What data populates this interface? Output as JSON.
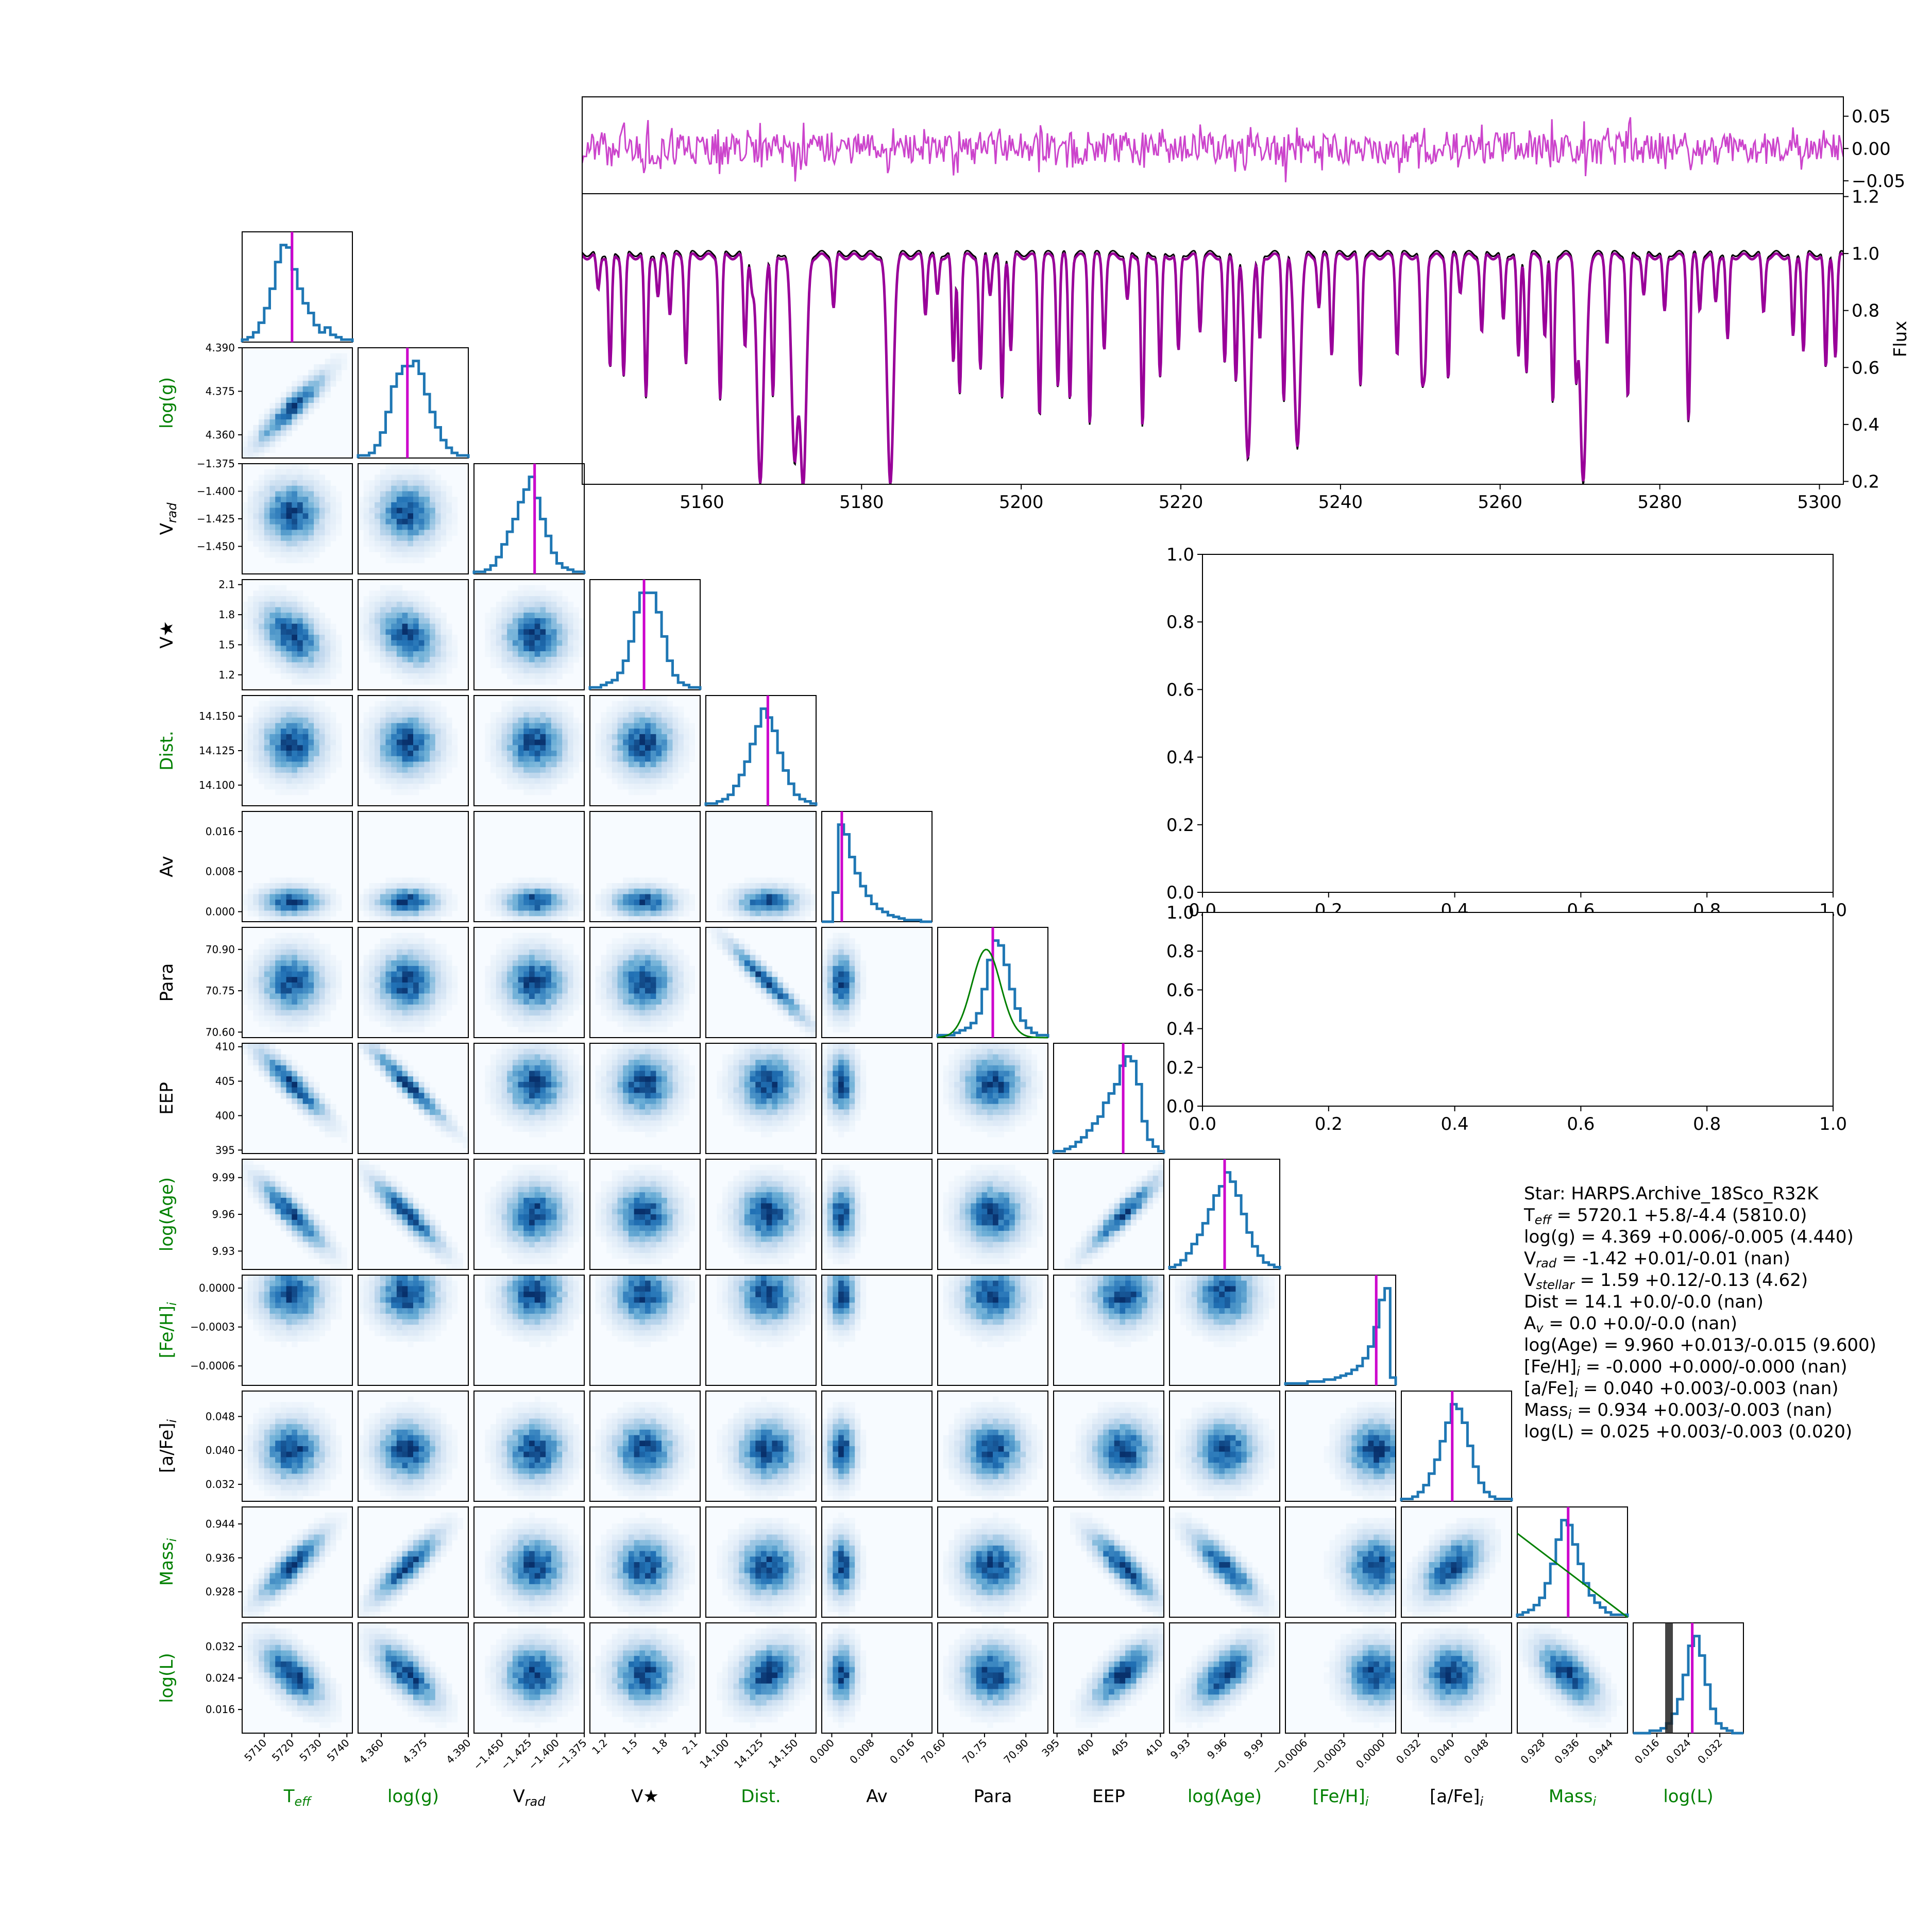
{
  "colors": {
    "hist": "#1f77b4",
    "best": "#cc00cc",
    "model": "#990099",
    "observed": "#000000",
    "residual": "#cc44cc",
    "prior": "#008000",
    "heat_low": "#f7fbff",
    "heat_high": "#08306b",
    "label_default": "#000000",
    "label_green": "#008000"
  },
  "corner": {
    "params": [
      {
        "sym": "T",
        "sub": "eff",
        "color": "green",
        "range": [
          5702,
          5742
        ],
        "ticks": [
          "5710",
          "5720",
          "5730",
          "5740"
        ],
        "tickvals": [
          5710,
          5720,
          5730,
          5740
        ],
        "best": 5720.1,
        "prior": null,
        "hist": [
          1,
          2,
          4,
          8,
          14,
          22,
          33,
          40,
          39,
          30,
          22,
          16,
          12,
          7,
          4,
          6,
          3,
          2,
          1,
          1
        ]
      },
      {
        "sym": "log(g)",
        "sub": "",
        "color": "green",
        "range": [
          4.352,
          4.39
        ],
        "ticks": [
          "4.360",
          "4.375",
          "4.390"
        ],
        "tickvals": [
          4.36,
          4.375,
          4.39
        ],
        "best": 4.369,
        "prior": null,
        "hist": [
          1,
          1,
          2,
          5,
          10,
          18,
          28,
          33,
          36,
          36,
          38,
          33,
          25,
          18,
          12,
          7,
          4,
          2,
          1,
          1
        ]
      },
      {
        "sym": "V",
        "sub": "rad",
        "color": "black",
        "range": [
          -1.475,
          -1.375
        ],
        "ticks": [
          "−1.450",
          "−1.425",
          "−1.400",
          "−1.375"
        ],
        "tickvals": [
          -1.45,
          -1.425,
          -1.4,
          -1.375
        ],
        "best": -1.42,
        "prior": null,
        "hist": [
          1,
          1,
          2,
          4,
          8,
          14,
          20,
          26,
          34,
          40,
          46,
          36,
          26,
          18,
          10,
          5,
          3,
          2,
          1,
          1
        ]
      },
      {
        "sym": "V★",
        "sub": "",
        "color": "black",
        "range": [
          1.05,
          2.15
        ],
        "ticks": [
          "1.2",
          "1.5",
          "1.8",
          "2.1"
        ],
        "tickvals": [
          1.2,
          1.5,
          1.8,
          2.1
        ],
        "best": 1.59,
        "prior": null,
        "hist": [
          1,
          1,
          2,
          3,
          4,
          7,
          12,
          20,
          32,
          40,
          40,
          40,
          32,
          22,
          12,
          6,
          3,
          2,
          1,
          1
        ]
      },
      {
        "sym": "Dist.",
        "sub": "",
        "color": "green",
        "range": [
          14.085,
          14.165
        ],
        "ticks": [
          "14.100",
          "14.125",
          "14.150"
        ],
        "tickvals": [
          14.1,
          14.125,
          14.15
        ],
        "best": 14.13,
        "prior": null,
        "hist": [
          1,
          1,
          2,
          3,
          5,
          9,
          14,
          20,
          28,
          36,
          44,
          40,
          34,
          24,
          16,
          10,
          5,
          3,
          2,
          1
        ]
      },
      {
        "sym": "Av",
        "sub": "",
        "color": "black",
        "range": [
          -0.002,
          0.02
        ],
        "ticks": [
          "0.000",
          "0.008",
          "0.016"
        ],
        "tickvals": [
          0,
          0.008,
          0.016
        ],
        "best": 0.002,
        "prior": null,
        "hist": [
          0,
          0,
          18,
          60,
          54,
          40,
          30,
          22,
          16,
          11,
          8,
          6,
          4,
          3,
          2,
          1,
          1,
          1,
          0,
          0
        ]
      },
      {
        "sym": "Para",
        "sub": "",
        "color": "black",
        "range": [
          70.58,
          70.98
        ],
        "ticks": [
          "70.60",
          "70.75",
          "70.90"
        ],
        "tickvals": [
          70.6,
          70.75,
          70.9
        ],
        "best": 70.78,
        "prior": "gauss",
        "hist": [
          1,
          1,
          1,
          2,
          3,
          4,
          6,
          10,
          20,
          32,
          40,
          38,
          30,
          20,
          12,
          7,
          4,
          2,
          1,
          1
        ]
      },
      {
        "sym": "EEP",
        "sub": "",
        "color": "black",
        "range": [
          394.5,
          410.5
        ],
        "ticks": [
          "395",
          "400",
          "405",
          "410"
        ],
        "tickvals": [
          395,
          400,
          405,
          410
        ],
        "best": 404.6,
        "prior": null,
        "hist": [
          1,
          1,
          2,
          3,
          5,
          7,
          10,
          13,
          16,
          22,
          26,
          30,
          38,
          42,
          40,
          30,
          14,
          6,
          3,
          1
        ]
      },
      {
        "sym": "log(Age)",
        "sub": "",
        "color": "green",
        "range": [
          9.915,
          10.005
        ],
        "ticks": [
          "9.93",
          "9.96",
          "9.99"
        ],
        "tickvals": [
          9.93,
          9.96,
          9.99
        ],
        "best": 9.96,
        "prior": null,
        "hist": [
          1,
          2,
          4,
          7,
          11,
          15,
          20,
          26,
          32,
          36,
          42,
          38,
          32,
          24,
          16,
          10,
          6,
          3,
          2,
          1
        ]
      },
      {
        "sym": "[Fe/H]",
        "sub": "i",
        "color": "green",
        "range": [
          -0.00075,
          0.0001
        ],
        "ticks": [
          "−0.0006",
          "−0.0003",
          "0.0000"
        ],
        "tickvals": [
          -0.0006,
          -0.0003,
          0
        ],
        "best": -5e-05,
        "prior": null,
        "hist": [
          1,
          1,
          1,
          1,
          2,
          2,
          2,
          3,
          3,
          4,
          5,
          6,
          8,
          10,
          14,
          20,
          30,
          44,
          50,
          4
        ]
      },
      {
        "sym": "[a/Fe]",
        "sub": "i",
        "color": "black",
        "range": [
          0.028,
          0.054
        ],
        "ticks": [
          "0.032",
          "0.040",
          "0.048"
        ],
        "tickvals": [
          0.032,
          0.04,
          0.048
        ],
        "best": 0.04,
        "prior": null,
        "hist": [
          1,
          1,
          2,
          4,
          7,
          12,
          18,
          26,
          34,
          42,
          40,
          34,
          24,
          15,
          8,
          4,
          2,
          1,
          1,
          1
        ]
      },
      {
        "sym": "Mass",
        "sub": "i",
        "color": "green",
        "range": [
          0.922,
          0.948
        ],
        "ticks": [
          "0.928",
          "0.936",
          "0.944"
        ],
        "tickvals": [
          0.928,
          0.936,
          0.944
        ],
        "best": 0.934,
        "prior": "line",
        "hist": [
          1,
          2,
          3,
          5,
          8,
          14,
          22,
          32,
          40,
          38,
          30,
          22,
          14,
          9,
          6,
          4,
          2,
          1,
          1,
          1
        ]
      },
      {
        "sym": "log(L)",
        "sub": "",
        "color": "green",
        "range": [
          0.01,
          0.038
        ],
        "ticks": [
          "0.016",
          "0.024",
          "0.032"
        ],
        "tickvals": [
          0.016,
          0.024,
          0.032
        ],
        "best": 0.025,
        "prior": "band",
        "hist": [
          0,
          0,
          0,
          1,
          1,
          2,
          4,
          8,
          14,
          24,
          36,
          40,
          32,
          20,
          10,
          4,
          2,
          1,
          0,
          0
        ]
      }
    ]
  },
  "spectrum": {
    "flux_label": "Flux",
    "x_ticks": [
      "5160",
      "5180",
      "5200",
      "5220",
      "5240",
      "5260",
      "5280",
      "5300"
    ],
    "x_tickvals": [
      5160,
      5180,
      5200,
      5220,
      5240,
      5260,
      5280,
      5300
    ],
    "y_ticks": [
      "0.2",
      "0.4",
      "0.6",
      "0.8",
      "1.0",
      "1.2"
    ],
    "y_tickvals": [
      0.2,
      0.4,
      0.6,
      0.8,
      1.0,
      1.2
    ],
    "resid_ticks": [
      "0.05",
      "0.00",
      "−0.05"
    ],
    "resid_tickvals": [
      0.05,
      0,
      -0.05
    ],
    "xlim": [
      5145,
      5303
    ],
    "ylim": [
      0.19,
      1.21
    ],
    "resid_ylim": [
      -0.07,
      0.08
    ],
    "lines": [
      [
        5147,
        0.88
      ],
      [
        5148.5,
        0.6
      ],
      [
        5150.2,
        0.58
      ],
      [
        5153,
        0.5
      ],
      [
        5154.5,
        0.85
      ],
      [
        5156,
        0.8
      ],
      [
        5158,
        0.63
      ],
      [
        5162.3,
        0.5
      ],
      [
        5165.4,
        0.68
      ],
      [
        5166.3,
        0.9
      ],
      [
        5167.3,
        0.2
      ],
      [
        5168.9,
        0.5
      ],
      [
        5171.6,
        0.3
      ],
      [
        5172.7,
        0.2
      ],
      [
        5176.5,
        0.82
      ],
      [
        5183.6,
        0.2
      ],
      [
        5188,
        0.8
      ],
      [
        5189.5,
        0.86
      ],
      [
        5191.5,
        0.62
      ],
      [
        5192.3,
        0.53
      ],
      [
        5194.9,
        0.6
      ],
      [
        5196.1,
        0.87
      ],
      [
        5197.6,
        0.5
      ],
      [
        5198.7,
        0.67
      ],
      [
        5202.3,
        0.45
      ],
      [
        5204.6,
        0.55
      ],
      [
        5206.1,
        0.5
      ],
      [
        5208.6,
        0.42
      ],
      [
        5210.4,
        0.68
      ],
      [
        5213.3,
        0.84
      ],
      [
        5215.2,
        0.4
      ],
      [
        5217.4,
        0.57
      ],
      [
        5219.7,
        0.66
      ],
      [
        5222.4,
        0.74
      ],
      [
        5225.5,
        0.62
      ],
      [
        5226.9,
        0.57
      ],
      [
        5228.4,
        0.3
      ],
      [
        5229.9,
        0.7
      ],
      [
        5232.9,
        0.5
      ],
      [
        5234.6,
        0.34
      ],
      [
        5237.3,
        0.82
      ],
      [
        5238.9,
        0.66
      ],
      [
        5242.5,
        0.55
      ],
      [
        5247.1,
        0.66
      ],
      [
        5250.2,
        0.6
      ],
      [
        5250.6,
        0.65
      ],
      [
        5253.5,
        0.57
      ],
      [
        5255.0,
        0.88
      ],
      [
        5257.7,
        0.73
      ],
      [
        5260.4,
        0.77
      ],
      [
        5262.3,
        0.64
      ],
      [
        5263.3,
        0.6
      ],
      [
        5265.6,
        0.72
      ],
      [
        5266.6,
        0.48
      ],
      [
        5269.5,
        0.62
      ],
      [
        5270.4,
        0.2
      ],
      [
        5273.4,
        0.7
      ],
      [
        5276.0,
        0.5
      ],
      [
        5278.0,
        0.86
      ],
      [
        5280.6,
        0.8
      ],
      [
        5283.6,
        0.43
      ],
      [
        5285.0,
        0.81
      ],
      [
        5287.0,
        0.84
      ],
      [
        5288.5,
        0.7
      ],
      [
        5293.0,
        0.8
      ],
      [
        5296.7,
        0.71
      ],
      [
        5298.0,
        0.67
      ],
      [
        5300.8,
        0.6
      ],
      [
        5302.0,
        0.65
      ]
    ]
  },
  "empty_axes": {
    "ticks": [
      "0.0",
      "0.2",
      "0.4",
      "0.6",
      "0.8",
      "1.0"
    ],
    "tickvals": [
      0,
      0.2,
      0.4,
      0.6,
      0.8,
      1.0
    ]
  },
  "results": [
    {
      "pre": "Star: HARPS.Archive_18Sco_R32K",
      "sub": "",
      "post": ""
    },
    {
      "pre": "T",
      "sub": "eff",
      "post": " = 5720.1 +5.8/-4.4 (5810.0)"
    },
    {
      "pre": "log(g) = 4.369 +0.006/-0.005 (4.440)",
      "sub": "",
      "post": ""
    },
    {
      "pre": "V",
      "sub": "rad",
      "post": " = -1.42 +0.01/-0.01 (nan)"
    },
    {
      "pre": "V",
      "sub": "stellar",
      "post": " = 1.59 +0.12/-0.13 (4.62)"
    },
    {
      "pre": "Dist = 14.1 +0.0/-0.0 (nan)",
      "sub": "",
      "post": ""
    },
    {
      "pre": "A",
      "sub": "v",
      "post": " = 0.0 +0.0/-0.0 (nan)"
    },
    {
      "pre": "log(Age) = 9.960 +0.013/-0.015 (9.600)",
      "sub": "",
      "post": ""
    },
    {
      "pre": "[Fe/H]",
      "sub": "i",
      "post": " = -0.000 +0.000/-0.000 (nan)"
    },
    {
      "pre": "[a/Fe]",
      "sub": "i",
      "post": " = 0.040 +0.003/-0.003 (nan)"
    },
    {
      "pre": "Mass",
      "sub": "i",
      "post": " = 0.934 +0.003/-0.003 (nan)"
    },
    {
      "pre": "log(L) = 0.025 +0.003/-0.003 (0.020)",
      "sub": "",
      "post": ""
    }
  ],
  "chart_data": [
    {
      "type": "line",
      "title": "",
      "xlabel": "",
      "ylabel": "Flux",
      "xlim": [
        5145,
        5303
      ],
      "ylim": [
        0.19,
        1.21
      ],
      "series": [],
      "note_values": "observed (black) and model (magenta) stellar spectrum with residual panel above (range -0.05 to 0.05)"
    },
    {
      "type": "heatmap",
      "title": "",
      "xlabel": "",
      "ylabel": "",
      "parameters": [
        "Teff",
        "log(g)",
        "Vrad",
        "V★",
        "Dist.",
        "Av",
        "Para",
        "EEP",
        "log(Age)",
        "[Fe/H]i",
        "[a/Fe]i",
        "Massi",
        "log(L)"
      ],
      "best_values": [
        5720.1,
        4.369,
        -1.42,
        1.59,
        14.1,
        0.0,
        70.78,
        404.6,
        9.96,
        -0.0,
        0.04,
        0.934,
        0.025
      ]
    },
    {
      "type": "line",
      "title": "",
      "xlabel": "",
      "ylabel": "",
      "xlim": [
        0,
        1
      ],
      "ylim": [
        0,
        1
      ],
      "series": []
    },
    {
      "type": "line",
      "title": "",
      "xlabel": "",
      "ylabel": "",
      "xlim": [
        0,
        1
      ],
      "ylim": [
        0,
        1
      ],
      "series": []
    }
  ]
}
